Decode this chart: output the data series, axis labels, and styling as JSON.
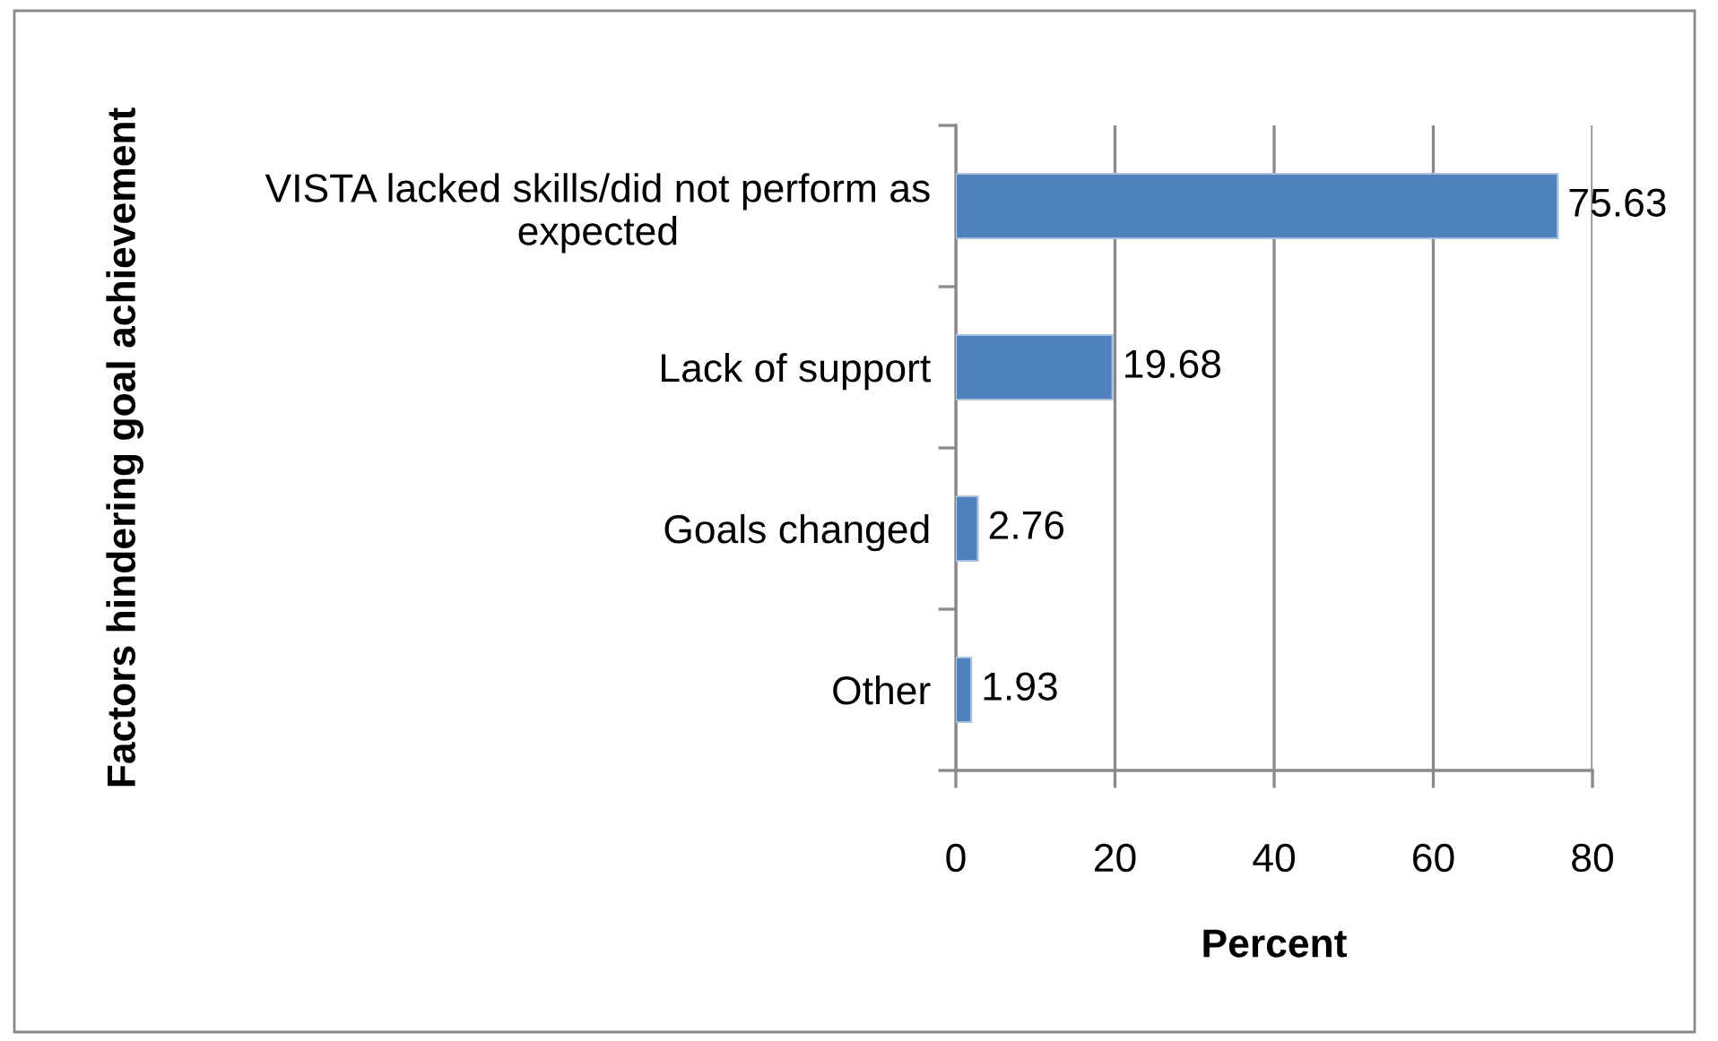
{
  "chart_data": {
    "type": "bar",
    "orientation": "horizontal",
    "xlabel": "Percent",
    "ylabel": "Factors hindering goal achievement",
    "categories": [
      "VISTA lacked skills/did not perform as expected",
      "Lack of support",
      "Goals changed",
      "Other"
    ],
    "values": [
      75.63,
      19.68,
      2.76,
      1.93
    ],
    "color": "#4f81bd",
    "xlim": [
      0,
      80
    ],
    "xticks": [
      0,
      20,
      40,
      60,
      80
    ],
    "grid": "x",
    "data_labels": true
  }
}
